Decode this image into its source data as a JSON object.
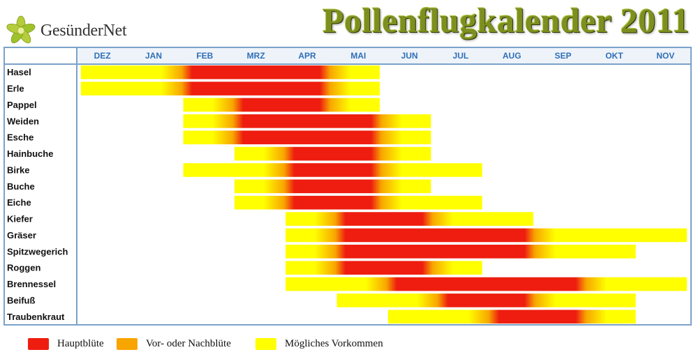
{
  "brand": {
    "name": "GesünderNet"
  },
  "title": "Pollenflugkalender 2011",
  "colors": {
    "main": "#ee1d10",
    "pre_post": "#f8a500",
    "possible": "#ffff00",
    "frame": "#7aa2c9",
    "month_text": "#2f6fb5"
  },
  "legend": [
    {
      "label": "Hauptblüte",
      "color": "#ee1d10"
    },
    {
      "label": "Vor- oder Nachblüte",
      "color": "#f8a500"
    },
    {
      "label": "Mögliches Vorkommen",
      "color": "#ffff00"
    }
  ],
  "chart_data": {
    "type": "heatmap",
    "title": "Pollenflugkalender 2011",
    "x_categories": [
      "DEZ",
      "JAN",
      "FEB",
      "MRZ",
      "APR",
      "MAI",
      "JUN",
      "JUL",
      "AUG",
      "SEP",
      "OKT",
      "NOV"
    ],
    "value_scale": [
      "Mögliches Vorkommen",
      "Vor- oder Nachblüte",
      "Hauptblüte"
    ],
    "rows": [
      {
        "name": "Hasel",
        "possible": [
          "DEZ",
          "MAI"
        ],
        "main": [
          "FEB",
          "APR"
        ]
      },
      {
        "name": "Erle",
        "possible": [
          "DEZ",
          "MAI"
        ],
        "main": [
          "FEB",
          "APR"
        ]
      },
      {
        "name": "Pappel",
        "possible": [
          "FEB",
          "MAI"
        ],
        "main": [
          "MRZ",
          "APR"
        ]
      },
      {
        "name": "Weiden",
        "possible": [
          "FEB",
          "JUN"
        ],
        "main": [
          "MRZ",
          "MAI"
        ]
      },
      {
        "name": "Esche",
        "possible": [
          "FEB",
          "JUN"
        ],
        "main": [
          "MRZ",
          "MAI"
        ]
      },
      {
        "name": "Hainbuche",
        "possible": [
          "MRZ",
          "JUN"
        ],
        "main": [
          "APR",
          "MAI"
        ]
      },
      {
        "name": "Birke",
        "possible": [
          "FEB",
          "JUL"
        ],
        "main": [
          "APR",
          "MAI"
        ]
      },
      {
        "name": "Buche",
        "possible": [
          "MRZ",
          "JUN"
        ],
        "main": [
          "APR",
          "MAI"
        ]
      },
      {
        "name": "Eiche",
        "possible": [
          "MRZ",
          "JUL"
        ],
        "main": [
          "APR",
          "MAI"
        ]
      },
      {
        "name": "Kiefer",
        "possible": [
          "APR",
          "AUG"
        ],
        "main": [
          "MAI",
          "JUN"
        ]
      },
      {
        "name": "Gräser",
        "possible": [
          "APR",
          "NOV"
        ],
        "main": [
          "MAI",
          "AUG"
        ]
      },
      {
        "name": "Spitzwegerich",
        "possible": [
          "APR",
          "OKT"
        ],
        "main": [
          "MAI",
          "AUG"
        ]
      },
      {
        "name": "Roggen",
        "possible": [
          "APR",
          "JUL"
        ],
        "main": [
          "MAI",
          "JUN"
        ]
      },
      {
        "name": "Brennessel",
        "possible": [
          "APR",
          "NOV"
        ],
        "main": [
          "JUN",
          "SEP"
        ]
      },
      {
        "name": "Beifuß",
        "possible": [
          "MAI",
          "OKT"
        ],
        "main": [
          "JUL",
          "AUG"
        ]
      },
      {
        "name": "Traubenkraut",
        "possible": [
          "JUN",
          "OKT"
        ],
        "main": [
          "AUG",
          "SEP"
        ]
      }
    ]
  }
}
